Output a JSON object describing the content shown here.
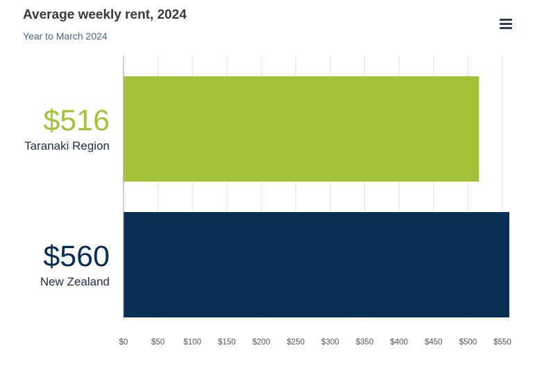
{
  "header": {
    "title": "Average weekly rent, 2024",
    "subtitle": "Year to March 2024"
  },
  "menu": {
    "icon": "hamburger-menu-icon"
  },
  "chart_data": {
    "type": "bar",
    "orientation": "horizontal",
    "title": "Average weekly rent, 2024",
    "subtitle": "Year to March 2024",
    "categories": [
      "Taranaki Region",
      "New Zealand"
    ],
    "values": [
      516,
      560
    ],
    "value_labels": [
      "$516",
      "$560"
    ],
    "colors": [
      "#a4c23a",
      "#082e53"
    ],
    "xlim": [
      0,
      560
    ],
    "xticks": [
      0,
      50,
      100,
      150,
      200,
      250,
      300,
      350,
      400,
      450,
      500,
      550
    ],
    "xtick_labels": [
      "$0",
      "$50",
      "$100",
      "$150",
      "$200",
      "$250",
      "$300",
      "$350",
      "$400",
      "$450",
      "$500",
      "$550"
    ],
    "grid": true,
    "legend": "none"
  }
}
